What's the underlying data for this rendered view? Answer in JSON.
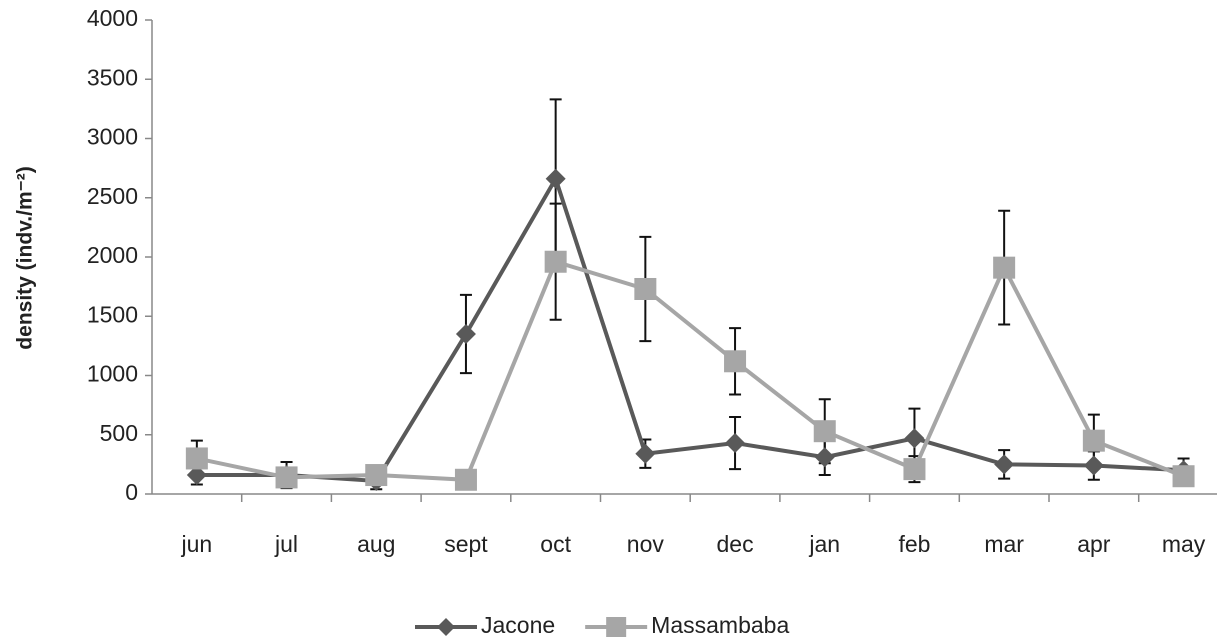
{
  "chart_data": {
    "type": "line",
    "y_label": "density (indv./m⁻²)",
    "categories": [
      "jun",
      "jul",
      "aug",
      "sept",
      "oct",
      "nov",
      "dec",
      "jan",
      "feb",
      "mar",
      "apr",
      "may"
    ],
    "series": [
      {
        "name": "Jacone",
        "color": "#595959",
        "marker": "diamond",
        "values": [
          160,
          160,
          110,
          1350,
          2660,
          340,
          430,
          310,
          470,
          250,
          240,
          200
        ],
        "errors": [
          80,
          110,
          70,
          330,
          670,
          120,
          220,
          150,
          250,
          120,
          120,
          100
        ]
      },
      {
        "name": "Massambaba",
        "color": "#a6a6a6",
        "marker": "square",
        "values": [
          300,
          140,
          160,
          120,
          1960,
          1730,
          1120,
          530,
          210,
          1910,
          450,
          150
        ],
        "errors": [
          150,
          null,
          null,
          null,
          490,
          440,
          280,
          270,
          110,
          480,
          220,
          null
        ]
      }
    ],
    "ylim": [
      0,
      4000
    ],
    "yticks": [
      0,
      500,
      1000,
      1500,
      2000,
      2500,
      3000,
      3500,
      4000
    ],
    "legend": "bottom"
  }
}
